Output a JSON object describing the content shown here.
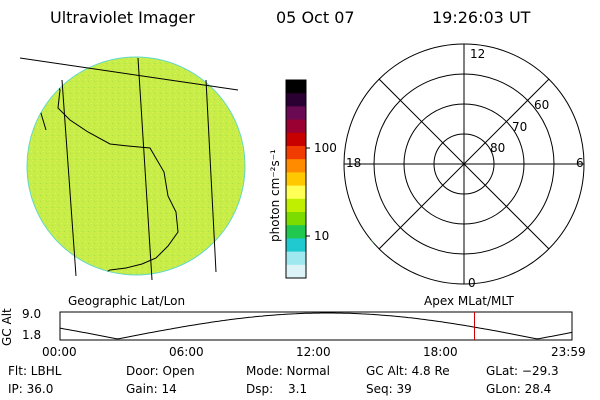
{
  "header": {
    "instrument": "Ultraviolet Imager",
    "date": "05 Oct 07",
    "time": "19:26:03 UT"
  },
  "colorbar": {
    "unit_label": "photon cm⁻²s⁻¹",
    "ticks": [
      {
        "label": "100",
        "value": 100
      },
      {
        "label": "10",
        "value": 10
      }
    ],
    "colors": [
      "#000000",
      "#2a0033",
      "#6a0a52",
      "#9a0032",
      "#c80000",
      "#f03c00",
      "#ff8c00",
      "#ffc800",
      "#ffff55",
      "#c0f000",
      "#7cdc00",
      "#20c850",
      "#20c8d0",
      "#a0e8f0",
      "#dcf4f8"
    ]
  },
  "geo_map": {
    "label": "Geographic Lat/Lon",
    "disk_color": "#c8ec48"
  },
  "polar_plot": {
    "label": "Apex MLat/MLT",
    "mlt_labels": {
      "top": "12",
      "left": "18",
      "right": "6",
      "bottom": "0"
    },
    "lat_labels": [
      {
        "label": "60",
        "lat": 60
      },
      {
        "label": "70",
        "lat": 70
      },
      {
        "label": "80",
        "lat": 80
      }
    ]
  },
  "altitude_strip": {
    "ylabel": "GC Alt",
    "y_ticks": [
      "9.0",
      "1.8"
    ],
    "x_ticks": [
      "00:00",
      "06:00",
      "12:00",
      "18:00",
      "23:59"
    ],
    "current_marker_hours": 19.43,
    "marker_color": "#d00000"
  },
  "info": {
    "filter": "Flt: LBHL",
    "door": "Door: Open",
    "mode": "Mode: Normal",
    "gc_alt": "GC Alt: 4.8 Re",
    "glat": "GLat: −29.3",
    "ip": "IP: 36.0",
    "gain": "Gain: 14",
    "dsp_label": "Dsp:",
    "dsp_value": "3.1",
    "seq": "Seq: 39",
    "glon": "GLon:  28.4"
  }
}
